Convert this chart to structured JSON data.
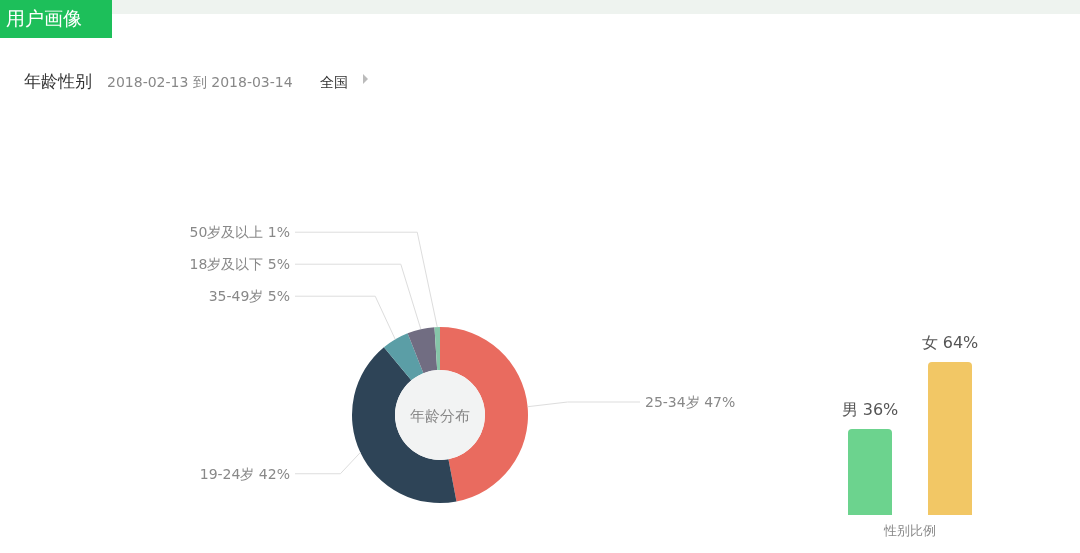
{
  "chart_data": [
    {
      "type": "donut",
      "title": "年龄性别",
      "subtitle": "2018-02-13 到 2018-03-14",
      "annotations": [
        "用户画像",
        "全国",
        "年龄分布"
      ],
      "categories": [
        "25-34岁",
        "19-24岁",
        "35-49岁",
        "18岁及以下",
        "50岁及以上"
      ],
      "values": [
        47,
        42,
        5,
        5,
        1
      ],
      "value_labels": [
        "47%",
        "42%",
        "5%",
        "5%",
        "1%"
      ],
      "colors": [
        "#e96b5f",
        "#2e4457",
        "#5b9ea6",
        "#716d82",
        "#86c5a8"
      ]
    },
    {
      "type": "bar",
      "xlabel": "性别比例",
      "categories": [
        null,
        null
      ],
      "values": [
        36,
        64
      ],
      "value_labels": [
        "男 36%",
        "女 64%"
      ],
      "colors": [
        "#6cd38e",
        "#f2c765"
      ]
    }
  ]
}
